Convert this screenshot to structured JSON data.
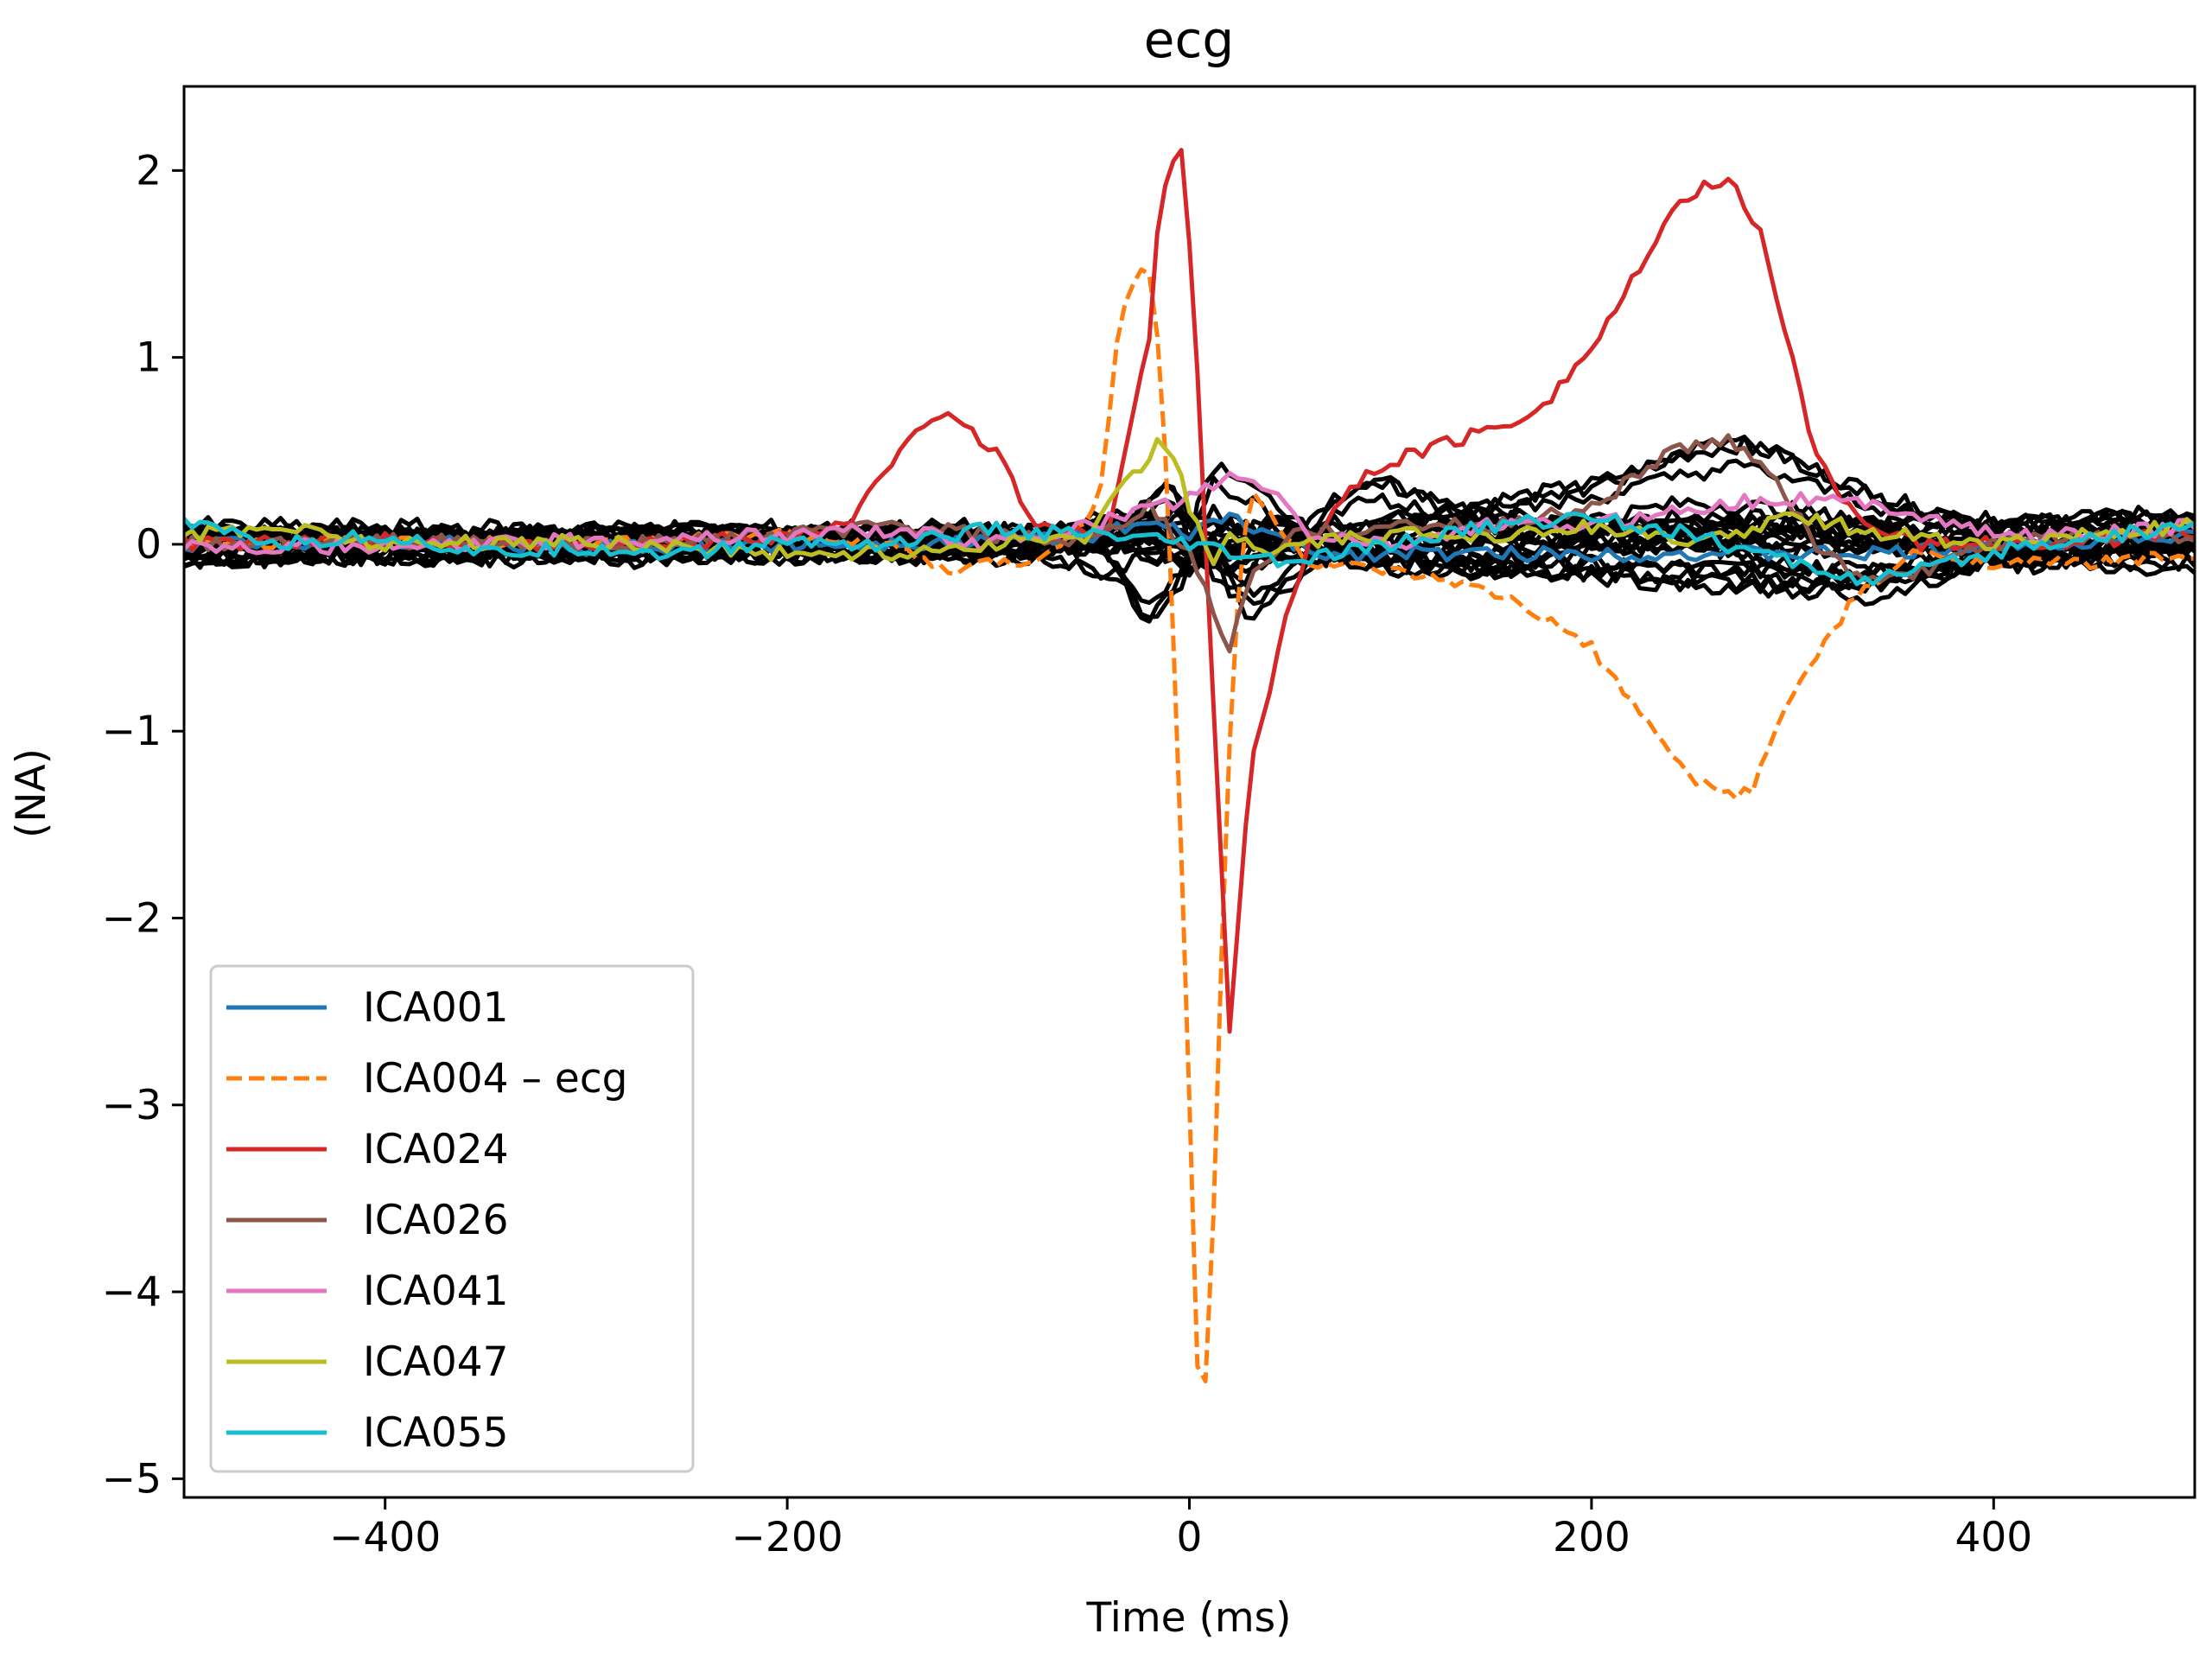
{
  "chart_data": {
    "type": "line",
    "title": "ecg",
    "xlabel": "Time (ms)",
    "ylabel": "(NA)",
    "xlim": [
      -500,
      500
    ],
    "ylim": [
      -5.1,
      2.45
    ],
    "grid": false,
    "legend_position": "lower-left",
    "x_ticks": [
      {
        "value": -400,
        "label": "−400"
      },
      {
        "value": -200,
        "label": "−200"
      },
      {
        "value": 0,
        "label": "0"
      },
      {
        "value": 200,
        "label": "200"
      },
      {
        "value": 400,
        "label": "400"
      }
    ],
    "y_ticks": [
      {
        "value": 2,
        "label": "2"
      },
      {
        "value": 1,
        "label": "1"
      },
      {
        "value": 0,
        "label": "0"
      },
      {
        "value": -1,
        "label": "−1"
      },
      {
        "value": -2,
        "label": "−2"
      },
      {
        "value": -3,
        "label": "−3"
      },
      {
        "value": -4,
        "label": "−4"
      },
      {
        "value": -5,
        "label": "−5"
      }
    ],
    "background_series": {
      "color": "#000000",
      "count": 24,
      "description_note": "unlabeled black component traces near zero",
      "traces": [
        {
          "x": [
            -500,
            -300,
            -100,
            -40,
            -20,
            -5,
            10,
            30,
            60,
            100,
            150,
            200,
            250,
            300,
            350,
            400,
            450,
            500
          ],
          "y": [
            0.05,
            0.03,
            0.04,
            -0.15,
            -0.6,
            -0.3,
            0.45,
            0.3,
            0.05,
            0.1,
            0.0,
            0.05,
            0.05,
            0.1,
            0.1,
            0.05,
            0.1,
            0.1
          ]
        },
        {
          "x": [
            -500,
            -300,
            -100,
            -30,
            -10,
            10,
            30,
            60,
            100,
            150,
            200,
            250,
            275,
            300,
            350,
            400,
            450,
            500
          ],
          "y": [
            -0.05,
            0.0,
            -0.05,
            0.1,
            0.35,
            -0.1,
            -0.45,
            -0.2,
            0.1,
            0.2,
            0.3,
            0.5,
            0.55,
            0.45,
            0.2,
            0.05,
            0.1,
            0.05
          ]
        },
        {
          "x": [
            -500,
            -300,
            -100,
            -20,
            0,
            20,
            40,
            80,
            100,
            130,
            200,
            250,
            300,
            340,
            400,
            450,
            500
          ],
          "y": [
            0.0,
            0.05,
            0.0,
            0.2,
            0.0,
            -0.3,
            -0.1,
            0.35,
            0.4,
            0.2,
            0.1,
            0.05,
            -0.25,
            -0.35,
            -0.1,
            0.0,
            -0.05
          ]
        },
        {
          "x": [
            -500,
            -300,
            -100,
            -30,
            0,
            20,
            50,
            100,
            150,
            200,
            250,
            300,
            350,
            400,
            450,
            500
          ],
          "y": [
            0.08,
            0.02,
            0.05,
            0.1,
            -0.2,
            0.15,
            -0.1,
            -0.05,
            -0.15,
            -0.2,
            -0.25,
            -0.3,
            -0.25,
            -0.1,
            -0.05,
            0.0
          ]
        },
        {
          "x": [
            -500,
            -300,
            -100,
            -30,
            -10,
            10,
            40,
            100,
            150,
            200,
            250,
            300,
            350,
            400,
            450,
            500
          ],
          "y": [
            -0.08,
            -0.05,
            -0.05,
            0.05,
            0.2,
            -0.1,
            0.1,
            0.0,
            0.1,
            0.15,
            0.25,
            0.2,
            0.1,
            0.05,
            0.15,
            0.2
          ]
        },
        {
          "x": [
            -500,
            -300,
            -100,
            -20,
            10,
            40,
            100,
            150,
            200,
            250,
            300,
            350,
            400,
            450,
            500
          ],
          "y": [
            0.1,
            0.05,
            0.08,
            0.15,
            -0.05,
            0.2,
            -0.1,
            -0.1,
            0.05,
            0.1,
            0.15,
            0.05,
            0.0,
            -0.05,
            0.05
          ]
        },
        {
          "x": [
            -500,
            -300,
            -100,
            -40,
            0,
            30,
            100,
            200,
            300,
            400,
            500
          ],
          "y": [
            -0.03,
            0.02,
            -0.02,
            0.1,
            -0.1,
            0.05,
            -0.05,
            -0.1,
            -0.15,
            -0.05,
            -0.1
          ]
        },
        {
          "x": [
            -500,
            -300,
            -100,
            -40,
            0,
            30,
            100,
            200,
            300,
            400,
            500
          ],
          "y": [
            0.02,
            -0.03,
            0.03,
            -0.1,
            0.15,
            -0.05,
            0.05,
            0.1,
            0.05,
            0.1,
            0.0
          ]
        }
      ]
    },
    "series": [
      {
        "name": "ICA001",
        "color": "#1f77b4",
        "dash": "solid",
        "x": [
          -500,
          -400,
          -300,
          -200,
          -100,
          -50,
          -20,
          0,
          20,
          40,
          60,
          100,
          150,
          200,
          250,
          300,
          350,
          400,
          450,
          500
        ],
        "y": [
          0.0,
          0.02,
          -0.02,
          0.0,
          0.02,
          0.05,
          0.1,
          0.05,
          0.15,
          0.05,
          -0.05,
          -0.05,
          -0.05,
          -0.05,
          -0.05,
          -0.05,
          -0.05,
          0.0,
          0.02,
          0.05
        ]
      },
      {
        "name": "ICA004 – ecg",
        "color": "#ff7f0e",
        "dash": "dashed",
        "x": [
          -500,
          -400,
          -300,
          -200,
          -150,
          -120,
          -100,
          -80,
          -60,
          -45,
          -35,
          -25,
          -18,
          -12,
          -6,
          0,
          5,
          10,
          15,
          22,
          30,
          40,
          60,
          100,
          130,
          160,
          200,
          230,
          250,
          270,
          280,
          300,
          330,
          360,
          400,
          450,
          500
        ],
        "y": [
          0.0,
          0.02,
          0.0,
          0.05,
          0.0,
          -0.15,
          -0.1,
          -0.1,
          0.05,
          0.2,
          1.2,
          1.5,
          1.4,
          0.5,
          -1.0,
          -3.0,
          -4.75,
          -4.3,
          -2.5,
          -0.5,
          0.3,
          0.15,
          -0.1,
          -0.15,
          -0.2,
          -0.3,
          -0.55,
          -1.0,
          -1.25,
          -1.35,
          -1.3,
          -0.8,
          -0.3,
          -0.05,
          -0.1,
          -0.1,
          -0.05
        ]
      },
      {
        "name": "ICA024",
        "color": "#d62728",
        "dash": "solid",
        "x": [
          -500,
          -400,
          -300,
          -200,
          -170,
          -150,
          -140,
          -125,
          -110,
          -95,
          -80,
          -60,
          -40,
          -30,
          -20,
          -15,
          -8,
          -3,
          0,
          5,
          10,
          15,
          20,
          25,
          30,
          40,
          50,
          60,
          80,
          100,
          130,
          160,
          180,
          200,
          220,
          240,
          255,
          270,
          285,
          300,
          310,
          325,
          340,
          360,
          400,
          450,
          500
        ],
        "y": [
          0.0,
          0.02,
          -0.02,
          0.05,
          0.1,
          0.4,
          0.6,
          0.7,
          0.6,
          0.5,
          0.15,
          0.05,
          0.1,
          0.6,
          1.1,
          1.8,
          2.05,
          2.1,
          1.6,
          0.8,
          -0.5,
          -1.5,
          -2.6,
          -1.9,
          -1.2,
          -0.8,
          -0.3,
          0.0,
          0.3,
          0.45,
          0.55,
          0.65,
          0.8,
          1.05,
          1.4,
          1.75,
          1.93,
          1.92,
          1.65,
          1.0,
          0.5,
          0.25,
          0.1,
          0.0,
          0.0,
          0.02,
          0.05
        ]
      },
      {
        "name": "ICA026",
        "color": "#8c564b",
        "dash": "solid",
        "x": [
          -500,
          -400,
          -300,
          -200,
          -150,
          -100,
          -50,
          -20,
          0,
          10,
          20,
          30,
          50,
          100,
          150,
          200,
          240,
          270,
          290,
          310,
          330,
          350,
          400,
          450,
          500
        ],
        "y": [
          0.0,
          0.02,
          0.0,
          0.05,
          0.1,
          0.05,
          0.0,
          0.2,
          -0.05,
          -0.3,
          -0.55,
          -0.2,
          0.05,
          0.1,
          0.1,
          0.2,
          0.5,
          0.55,
          0.4,
          0.0,
          -0.15,
          -0.2,
          0.0,
          0.05,
          0.05
        ]
      },
      {
        "name": "ICA041",
        "color": "#e377c2",
        "dash": "solid",
        "x": [
          -500,
          -400,
          -300,
          -200,
          -150,
          -100,
          -50,
          0,
          20,
          40,
          60,
          100,
          150,
          200,
          250,
          300,
          350,
          400,
          450,
          500
        ],
        "y": [
          0.0,
          -0.02,
          0.02,
          0.05,
          0.08,
          0.0,
          0.1,
          0.25,
          0.35,
          0.3,
          0.05,
          0.0,
          0.1,
          0.1,
          0.2,
          0.25,
          0.2,
          0.05,
          0.05,
          0.1
        ]
      },
      {
        "name": "ICA047",
        "color": "#bcbd22",
        "dash": "solid",
        "x": [
          -500,
          -450,
          -400,
          -300,
          -200,
          -150,
          -100,
          -50,
          -30,
          -15,
          -8,
          0,
          10,
          20,
          40,
          60,
          100,
          150,
          200,
          250,
          300,
          350,
          400,
          450,
          500
        ],
        "y": [
          0.05,
          0.1,
          0.0,
          0.02,
          -0.05,
          -0.05,
          0.0,
          0.05,
          0.35,
          0.55,
          0.5,
          0.2,
          -0.1,
          0.05,
          -0.05,
          0.0,
          0.05,
          0.05,
          0.1,
          0.0,
          0.15,
          0.05,
          0.0,
          0.05,
          0.1
        ]
      },
      {
        "name": "ICA055",
        "color": "#17becf",
        "dash": "solid",
        "x": [
          -500,
          -450,
          -400,
          -350,
          -300,
          -250,
          -200,
          -150,
          -100,
          -50,
          0,
          20,
          50,
          100,
          150,
          200,
          250,
          300,
          340,
          380,
          420,
          460,
          500
        ],
        "y": [
          0.1,
          0.0,
          0.05,
          -0.05,
          -0.02,
          -0.05,
          0.02,
          0.0,
          0.08,
          0.05,
          0.0,
          -0.05,
          -0.1,
          0.0,
          0.1,
          0.15,
          0.05,
          -0.1,
          -0.2,
          -0.1,
          0.0,
          0.05,
          0.1
        ]
      }
    ]
  }
}
